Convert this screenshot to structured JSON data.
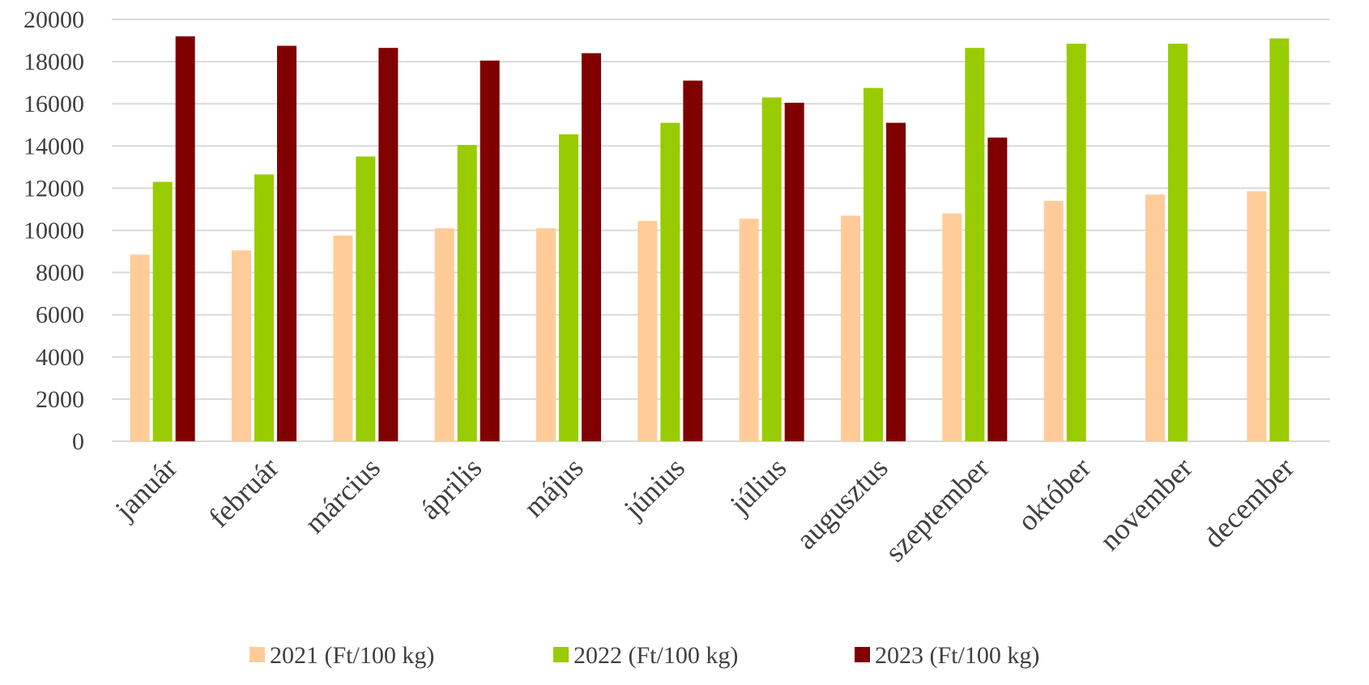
{
  "chart_data": {
    "type": "bar",
    "categories": [
      "január",
      "február",
      "március",
      "április",
      "május",
      "június",
      "július",
      "augusztus",
      "szeptember",
      "október",
      "november",
      "december"
    ],
    "series": [
      {
        "name": "2021 (Ft/100 kg)",
        "color": "#FFCC99",
        "values": [
          8850,
          9050,
          9750,
          10100,
          10100,
          10450,
          10550,
          10700,
          10800,
          11400,
          11700,
          11850
        ]
      },
      {
        "name": "2022 (Ft/100 kg)",
        "color": "#99CC00",
        "values": [
          12300,
          12650,
          13500,
          14050,
          14550,
          15100,
          16300,
          16750,
          18650,
          18850,
          18850,
          19100
        ]
      },
      {
        "name": "2023 (Ft/100 kg)",
        "color": "#800000",
        "values": [
          19200,
          18750,
          18650,
          18050,
          18400,
          17100,
          16050,
          15100,
          14400,
          null,
          null,
          null
        ]
      }
    ],
    "yticks": [
      "0",
      "2000",
      "4000",
      "6000",
      "8000",
      "10000",
      "12000",
      "14000",
      "16000",
      "18000",
      "20000"
    ],
    "ylim": [
      0,
      20000
    ],
    "grid": true,
    "legend_position": "bottom",
    "title": "",
    "xlabel": "",
    "ylabel": ""
  }
}
